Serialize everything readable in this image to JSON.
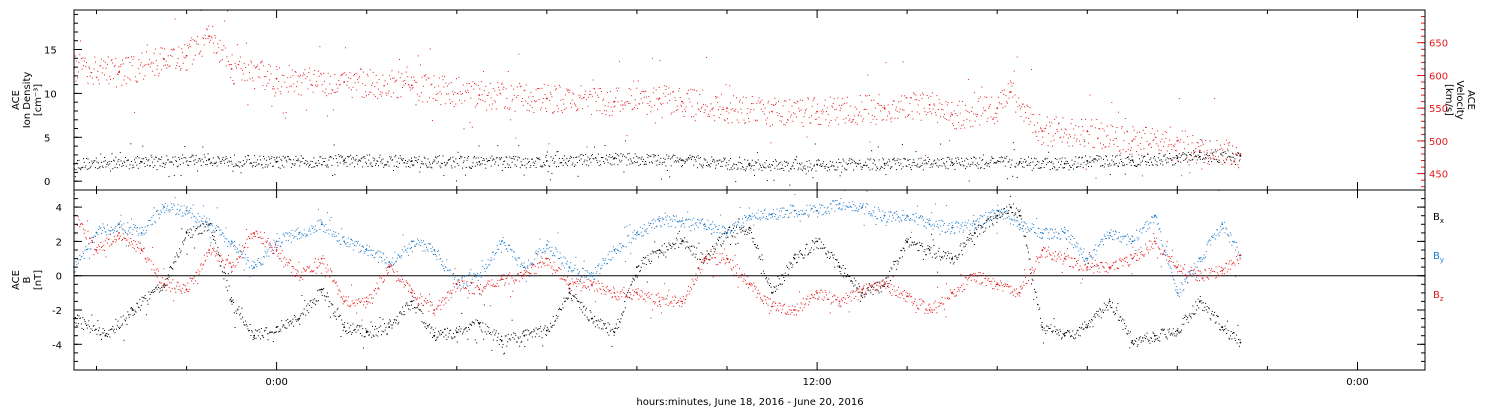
{
  "xaxis": {
    "label": "hours:minutes, June 18, 2016 - June 20, 2016",
    "tick_labels": [
      "0:00",
      "12:00",
      "0:00"
    ],
    "start_hour": -4.5,
    "end_hour": 25.5,
    "major_hours": [
      0,
      12,
      24
    ],
    "minor_step_hours": 2
  },
  "chart_data": [
    {
      "type": "scatter",
      "panel": "top",
      "ylabel_left": [
        "ACE",
        "Ion Density",
        "[cm⁻³]"
      ],
      "ylabel_right": [
        "ACE",
        "Velocity",
        "[km/s]"
      ],
      "ylim_left": [
        -1,
        19.5
      ],
      "ylim_right": [
        425,
        700
      ],
      "left_ticks": [
        0,
        5,
        10,
        15
      ],
      "right_ticks": [
        450,
        500,
        550,
        600,
        650
      ],
      "series": [
        {
          "axis": "left",
          "color": "#000000",
          "x": [
            -4.5,
            -3.0,
            -1.5,
            0.0,
            1.5,
            3.0,
            4.5,
            6.0,
            7.5,
            9.0,
            10.5,
            12.0,
            13.5,
            15.0,
            16.5,
            17.5,
            18.0,
            19.0,
            20.0,
            20.5,
            21.4
          ],
          "y": [
            2.0,
            2.2,
            2.5,
            2.2,
            2.4,
            2.3,
            2.2,
            2.3,
            2.6,
            2.4,
            1.8,
            1.9,
            2.0,
            2.1,
            2.2,
            2.0,
            2.3,
            2.4,
            2.6,
            2.8,
            2.9
          ]
        },
        {
          "axis": "right",
          "color": "#e31a1c",
          "x": [
            -4.5,
            -3.5,
            -2.5,
            -2.0,
            -1.5,
            -1.0,
            0.0,
            1.5,
            3.0,
            4.5,
            6.0,
            7.5,
            8.5,
            9.0,
            10.0,
            11.0,
            12.0,
            13.5,
            14.5,
            15.0,
            16.0,
            16.3,
            17.0,
            18.0,
            19.0,
            20.0,
            20.5,
            21.4
          ],
          "y": [
            612,
            605,
            625,
            630,
            660,
            610,
            595,
            590,
            585,
            570,
            565,
            560,
            565,
            560,
            550,
            545,
            545,
            550,
            555,
            540,
            550,
            575,
            515,
            515,
            500,
            500,
            485,
            480
          ]
        }
      ]
    },
    {
      "type": "scatter",
      "panel": "bottom",
      "ylabel": [
        "ACE",
        "B",
        "[nT]"
      ],
      "ylim": [
        -5.5,
        5
      ],
      "y_ticks": [
        -4,
        -2,
        0,
        2,
        4
      ],
      "legend": [
        "Bx",
        "By",
        "Bz"
      ],
      "series": [
        {
          "name": "Bx",
          "color": "#000000",
          "x": [
            -4.5,
            -3.8,
            -3.2,
            -2.5,
            -2.0,
            -1.5,
            -1.0,
            -0.5,
            0.0,
            0.5,
            1.0,
            1.5,
            2.0,
            2.5,
            3.0,
            3.5,
            4.0,
            4.5,
            5.0,
            5.5,
            6.0,
            6.5,
            7.0,
            7.5,
            8.0,
            8.5,
            9.0,
            9.5,
            10.0,
            10.5,
            11.0,
            11.5,
            12.0,
            12.5,
            13.0,
            13.5,
            14.0,
            14.5,
            15.0,
            15.5,
            16.0,
            16.3,
            16.5,
            17.0,
            17.5,
            18.0,
            18.5,
            19.0,
            19.5,
            20.0,
            20.5,
            21.0,
            21.4
          ],
          "y": [
            -2.5,
            -3.5,
            -2.0,
            -0.5,
            2.5,
            3.0,
            -1.5,
            -3.5,
            -3.0,
            -2.5,
            -0.8,
            -3.0,
            -3.3,
            -3.0,
            -1.5,
            -3.5,
            -3.3,
            -2.8,
            -3.8,
            -3.5,
            -3.2,
            -1.0,
            -2.5,
            -3.3,
            0.5,
            1.5,
            2.0,
            1.0,
            2.5,
            2.8,
            -1.0,
            1.0,
            2.0,
            0.5,
            -1.0,
            -0.5,
            2.0,
            1.5,
            1.0,
            2.5,
            3.5,
            4.0,
            3.5,
            -3.0,
            -3.5,
            -3.0,
            -1.5,
            -3.8,
            -3.5,
            -3.2,
            -1.5,
            -3.0,
            -3.9
          ]
        },
        {
          "name": "By",
          "color": "#1f78c8",
          "x": [
            -4.5,
            -4.0,
            -3.5,
            -3.0,
            -2.5,
            -2.0,
            -1.5,
            -1.0,
            -0.5,
            0.0,
            0.5,
            1.0,
            1.5,
            2.0,
            2.5,
            3.0,
            3.5,
            4.0,
            4.5,
            5.0,
            5.5,
            6.0,
            6.5,
            7.0,
            7.5,
            8.0,
            8.5,
            9.0,
            9.5,
            10.0,
            10.5,
            11.0,
            11.5,
            12.0,
            12.5,
            13.0,
            13.5,
            14.0,
            14.5,
            15.0,
            15.5,
            16.0,
            16.5,
            17.0,
            17.5,
            18.0,
            18.5,
            19.0,
            19.5,
            20.0,
            20.5,
            21.0,
            21.4
          ],
          "y": [
            0.5,
            2.5,
            3.0,
            2.5,
            4.0,
            3.8,
            3.0,
            2.0,
            0.5,
            2.0,
            2.5,
            3.0,
            2.0,
            1.5,
            0.8,
            2.0,
            1.5,
            -0.5,
            0.0,
            2.0,
            0.5,
            1.8,
            0.5,
            0.0,
            1.5,
            2.5,
            3.2,
            3.2,
            3.0,
            2.5,
            3.5,
            3.6,
            3.8,
            3.8,
            4.2,
            4.0,
            3.5,
            3.5,
            3.0,
            2.8,
            3.0,
            3.8,
            3.0,
            2.5,
            2.5,
            1.0,
            2.5,
            2.0,
            3.5,
            -1.0,
            1.0,
            3.0,
            1.2
          ]
        },
        {
          "name": "Bz",
          "color": "#e31a1c",
          "x": [
            -4.5,
            -4.0,
            -3.5,
            -3.0,
            -2.5,
            -2.0,
            -1.5,
            -1.0,
            -0.5,
            0.0,
            0.5,
            1.0,
            1.5,
            2.0,
            2.5,
            3.0,
            3.5,
            4.0,
            4.5,
            5.0,
            5.5,
            6.0,
            6.5,
            7.0,
            7.5,
            8.0,
            8.5,
            9.0,
            9.5,
            10.0,
            10.5,
            11.0,
            11.5,
            12.0,
            12.5,
            13.0,
            13.5,
            14.0,
            14.5,
            15.0,
            15.5,
            16.0,
            16.5,
            17.0,
            17.5,
            18.0,
            18.5,
            19.0,
            19.5,
            20.0,
            20.5,
            21.0,
            21.4
          ],
          "y": [
            3.5,
            1.5,
            2.5,
            1.5,
            -0.5,
            -0.8,
            1.5,
            0.5,
            2.5,
            1.5,
            0.0,
            1.0,
            -1.5,
            -1.5,
            0.5,
            -1.0,
            -2.0,
            -0.5,
            -0.8,
            -0.2,
            0.0,
            1.0,
            -0.5,
            -0.5,
            -1.0,
            -1.0,
            -1.5,
            -1.5,
            1.0,
            1.0,
            -0.5,
            -1.8,
            -2.0,
            -1.0,
            -1.5,
            -0.8,
            -0.5,
            -1.2,
            -2.0,
            -1.0,
            0.0,
            -0.5,
            -1.0,
            1.5,
            1.0,
            0.5,
            0.5,
            1.0,
            2.0,
            0.5,
            0.0,
            0.3,
            1.2
          ]
        }
      ]
    }
  ]
}
